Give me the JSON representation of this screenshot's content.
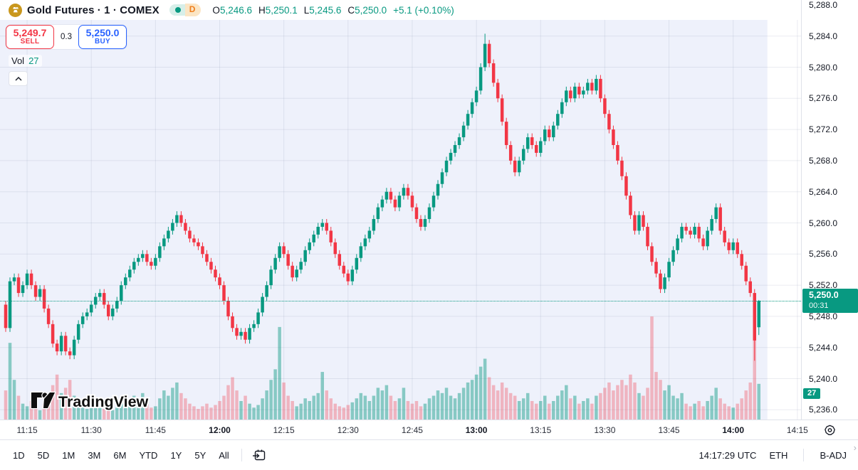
{
  "header": {
    "symbol_title": "Gold Futures · 1 · COMEX",
    "timeframe_badge": "D",
    "ohlc": {
      "open_label": "O",
      "open": "5,246.6",
      "high_label": "H",
      "high": "5,250.1",
      "low_label": "L",
      "low": "5,245.6",
      "close_label": "C",
      "close": "5,250.0",
      "change": "+5.1 (+0.10%)"
    }
  },
  "trade_panel": {
    "sell_price": "5,249.7",
    "sell_label": "SELL",
    "spread": "0.3",
    "buy_price": "5,250.0",
    "buy_label": "BUY"
  },
  "volume_row": {
    "label": "Vol",
    "value": "27"
  },
  "watermark": "TradingView",
  "price_axis": {
    "tick_labels": [
      "5,288.0",
      "5,284.0",
      "5,280.0",
      "5,276.0",
      "5,272.0",
      "5,268.0",
      "5,264.0",
      "5,260.0",
      "5,256.0",
      "5,252.0",
      "5,248.0",
      "5,244.0",
      "5,240.0",
      "5,236.0"
    ],
    "current_price_badge": {
      "price": "5,250.0",
      "countdown": "00:31"
    },
    "volume_badge": "27"
  },
  "time_axis": {
    "labels": [
      {
        "t": "11:15",
        "bold": false
      },
      {
        "t": "11:30",
        "bold": false
      },
      {
        "t": "11:45",
        "bold": false
      },
      {
        "t": "12:00",
        "bold": true
      },
      {
        "t": "12:15",
        "bold": false
      },
      {
        "t": "12:30",
        "bold": false
      },
      {
        "t": "12:45",
        "bold": false
      },
      {
        "t": "13:00",
        "bold": true
      },
      {
        "t": "13:15",
        "bold": false
      },
      {
        "t": "13:30",
        "bold": false
      },
      {
        "t": "13:45",
        "bold": false
      },
      {
        "t": "14:00",
        "bold": true
      },
      {
        "t": "14:15",
        "bold": false
      }
    ]
  },
  "toolbar": {
    "ranges": [
      "1D",
      "5D",
      "1M",
      "3M",
      "6M",
      "YTD",
      "1Y",
      "5Y",
      "All"
    ],
    "clock": "14:17:29 UTC",
    "session": "ETH",
    "adjustment": "B-ADJ"
  },
  "colors": {
    "up": "#089981",
    "down": "#f23645",
    "volume_up": "rgba(8,153,129,0.45)",
    "volume_down": "rgba(242,54,69,0.32)",
    "session_bg": "#eef1fb",
    "grid": "rgba(125,135,165,0.16)",
    "buy_accent": "#2962ff",
    "sell_accent": "#f23645"
  },
  "chart_data": {
    "type": "candlestick+volume",
    "title": "Gold Futures · 1 · COMEX",
    "interval_minutes": 1,
    "start_time": "11:10",
    "x_ticks": [
      "11:15",
      "11:30",
      "11:45",
      "12:00",
      "12:15",
      "12:30",
      "12:45",
      "13:00",
      "13:15",
      "13:30",
      "13:45",
      "14:00",
      "14:15"
    ],
    "y_ticks": [
      5288,
      5284,
      5280,
      5276,
      5272,
      5268,
      5264,
      5260,
      5256,
      5252,
      5248,
      5244,
      5240,
      5236
    ],
    "y_range_note": "price axis approx 5234-5290 visible",
    "current_price": 5250.0,
    "current_bar_countdown": "00:31",
    "current_bar_volume": 27,
    "current_bar_ohlc": {
      "o": 5246.6,
      "h": 5250.1,
      "l": 5245.6,
      "c": 5250.0
    },
    "candles": {
      "first_open": 5249.5,
      "default_wick": 0.5,
      "closes": [
        5246.5,
        5252.5,
        5253,
        5251,
        5252,
        5253.5,
        5252,
        5250.5,
        5251.5,
        5249,
        5247,
        5244.5,
        5243.5,
        5245.5,
        5243.5,
        5243,
        5245,
        5247,
        5248,
        5248.5,
        5249.5,
        5250.5,
        5251,
        5249.5,
        5248,
        5249,
        5250,
        5252,
        5253,
        5254,
        5255,
        5255.5,
        5256,
        5255,
        5254.5,
        5255.5,
        5257,
        5258,
        5259,
        5260,
        5261,
        5260,
        5259,
        5258,
        5257.5,
        5257,
        5256,
        5255,
        5254,
        5253,
        5252,
        5250,
        5248,
        5246.5,
        5245.5,
        5246,
        5245,
        5246.5,
        5247,
        5248.5,
        5250.5,
        5252,
        5254,
        5255.5,
        5257,
        5256,
        5254.5,
        5253,
        5254,
        5255,
        5256.5,
        5257.5,
        5258.5,
        5259.5,
        5260,
        5259,
        5257.5,
        5256,
        5254.5,
        5253.5,
        5252.5,
        5254,
        5255.5,
        5257,
        5258,
        5259,
        5260.5,
        5262,
        5263,
        5264,
        5263,
        5262,
        5263.5,
        5264.5,
        5263.5,
        5262,
        5260.5,
        5259.5,
        5260.5,
        5262,
        5263.5,
        5265,
        5266.5,
        5268,
        5269,
        5270,
        5271,
        5272.5,
        5274,
        5275.5,
        5277,
        5280,
        5283,
        5280.5,
        5278,
        5276,
        5273,
        5270,
        5268,
        5266.5,
        5268,
        5269.5,
        5271,
        5270,
        5269,
        5270.5,
        5272,
        5271,
        5272.5,
        5274,
        5275.5,
        5277,
        5276,
        5277.5,
        5276.5,
        5277,
        5278,
        5277,
        5278.5,
        5276,
        5274,
        5272,
        5270,
        5268,
        5266,
        5263.5,
        5261,
        5259,
        5261,
        5259.5,
        5257,
        5255,
        5253.5,
        5251.5,
        5253,
        5255,
        5256.5,
        5258,
        5259.5,
        5259,
        5258.5,
        5259.5,
        5258,
        5257,
        5259,
        5260.5,
        5262,
        5259,
        5257.5,
        5256.5,
        5257.5,
        5256,
        5254.5,
        5252.5,
        5251,
        5244.9,
        5250
      ],
      "wick_overrides": {
        "15": {
          "l": 5242.5
        },
        "112": {
          "h": 5284.3
        },
        "175": {
          "l": 5242.3
        }
      },
      "last_candle": {
        "o": 5246.6,
        "h": 5250.1,
        "l": 5245.6,
        "c": 5250.0
      }
    },
    "volumes": [
      22,
      58,
      30,
      18,
      12,
      10,
      14,
      9,
      7,
      12,
      18,
      26,
      34,
      20,
      24,
      30,
      18,
      14,
      10,
      8,
      9,
      12,
      10,
      8,
      10,
      7,
      9,
      14,
      16,
      12,
      18,
      14,
      20,
      12,
      9,
      10,
      16,
      22,
      18,
      24,
      28,
      20,
      16,
      12,
      10,
      8,
      10,
      12,
      9,
      11,
      14,
      18,
      26,
      32,
      22,
      14,
      18,
      12,
      9,
      11,
      16,
      22,
      30,
      38,
      70,
      28,
      18,
      14,
      10,
      12,
      16,
      14,
      18,
      20,
      36,
      22,
      16,
      12,
      10,
      9,
      11,
      13,
      16,
      20,
      18,
      14,
      18,
      24,
      22,
      26,
      18,
      14,
      16,
      24,
      14,
      12,
      14,
      10,
      12,
      16,
      18,
      22,
      20,
      24,
      18,
      16,
      20,
      24,
      28,
      30,
      34,
      40,
      46,
      32,
      26,
      22,
      28,
      24,
      20,
      18,
      14,
      16,
      20,
      14,
      12,
      14,
      18,
      12,
      14,
      18,
      22,
      26,
      16,
      18,
      12,
      14,
      16,
      12,
      18,
      20,
      24,
      28,
      22,
      26,
      30,
      26,
      34,
      28,
      20,
      18,
      24,
      78,
      36,
      30,
      22,
      26,
      18,
      16,
      20,
      12,
      10,
      12,
      14,
      10,
      14,
      18,
      24,
      16,
      12,
      10,
      9,
      12,
      16,
      22,
      28,
      62,
      27
    ]
  }
}
